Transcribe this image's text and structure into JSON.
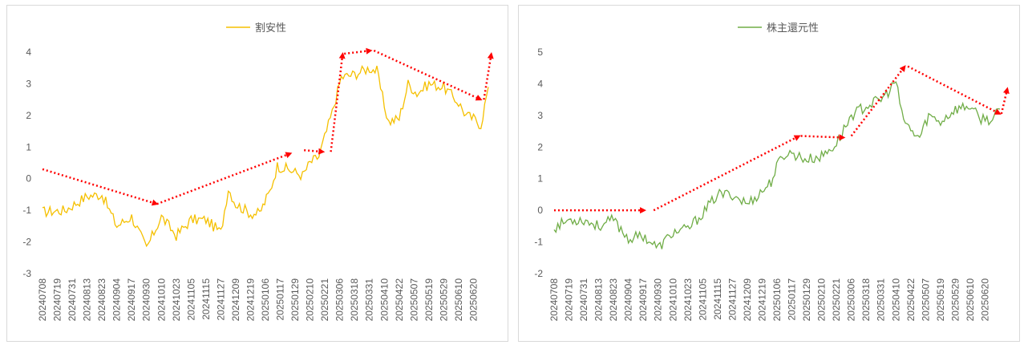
{
  "chart_data": [
    {
      "type": "line",
      "color": "#f5c000",
      "series": [
        {
          "name": "割安性"
        }
      ],
      "ylim": [
        -3,
        4
      ],
      "yticks": [
        -3,
        -2,
        -1,
        0,
        1,
        2,
        3,
        4
      ],
      "ytick_labels": [
        "-3",
        "-2",
        "-1",
        "0",
        "1",
        "2",
        "3",
        "4"
      ],
      "xtick_labels": [
        "20240708",
        "20240719",
        "20240731",
        "20240813",
        "20240823",
        "20240904",
        "20240917",
        "20240930",
        "20241010",
        "20241023",
        "20241105",
        "20241115",
        "20241127",
        "20241209",
        "20241219",
        "20250106",
        "20250117",
        "20250129",
        "20250210",
        "20250221",
        "20250306",
        "20250318",
        "20250331",
        "20250410",
        "20250422",
        "20250507",
        "20250519",
        "20250529",
        "20250610",
        "20250620"
      ],
      "keypoints": [
        [
          0,
          -1.05
        ],
        [
          1.5,
          -1.0
        ],
        [
          3,
          -0.55
        ],
        [
          4,
          -0.5
        ],
        [
          5,
          -1.5
        ],
        [
          6,
          -1.2
        ],
        [
          7,
          -2.2
        ],
        [
          7.5,
          -1.7
        ],
        [
          8,
          -1.2
        ],
        [
          9,
          -1.8
        ],
        [
          10,
          -1.3
        ],
        [
          11,
          -1.3
        ],
        [
          12,
          -1.7
        ],
        [
          12.5,
          -0.3
        ],
        [
          13,
          -0.8
        ],
        [
          14,
          -1.1
        ],
        [
          14.6,
          -1.1
        ],
        [
          15.3,
          -0.4
        ],
        [
          15.8,
          0.4
        ],
        [
          16.5,
          0.3
        ],
        [
          17.5,
          0.1
        ],
        [
          18,
          0.5
        ],
        [
          18.6,
          0.7
        ],
        [
          19.5,
          2.1
        ],
        [
          20.1,
          3.2
        ],
        [
          21,
          3.3
        ],
        [
          22,
          3.5
        ],
        [
          22.5,
          3.4
        ],
        [
          23,
          2.3
        ],
        [
          23.3,
          1.8
        ],
        [
          24,
          1.9
        ],
        [
          24.6,
          3.0
        ],
        [
          25.2,
          2.7
        ],
        [
          26,
          3.0
        ],
        [
          27,
          2.9
        ],
        [
          28,
          2.4
        ],
        [
          28.5,
          2.0
        ],
        [
          29,
          1.9
        ],
        [
          29.5,
          1.7
        ],
        [
          30,
          2.9
        ]
      ],
      "trend_arrows": [
        [
          [
            0,
            0.3
          ],
          [
            7.7,
            -0.8
          ]
        ],
        [
          [
            7.7,
            -0.8
          ],
          [
            16.7,
            0.8
          ]
        ],
        [
          [
            17.6,
            0.9
          ],
          [
            18.9,
            0.85
          ]
        ],
        [
          [
            19.4,
            0.85
          ],
          [
            20.2,
            3.95
          ]
        ],
        [
          [
            20.3,
            3.95
          ],
          [
            22.1,
            4.05
          ]
        ],
        [
          [
            22.3,
            4.05
          ],
          [
            29.5,
            2.5
          ]
        ],
        [
          [
            29.7,
            2.5
          ],
          [
            30.2,
            3.95
          ]
        ]
      ]
    },
    {
      "type": "line",
      "color": "#70ad47",
      "series": [
        {
          "name": "株主還元性"
        }
      ],
      "ylim": [
        -2,
        5
      ],
      "yticks": [
        -2,
        -1,
        0,
        1,
        2,
        3,
        4,
        5
      ],
      "ytick_labels": [
        "-2",
        "-1",
        "0",
        "1",
        "2",
        "3",
        "4",
        "5"
      ],
      "xtick_labels": [
        "20240708",
        "20240719",
        "20240731",
        "20240813",
        "20240823",
        "20240904",
        "20240917",
        "20240930",
        "20241010",
        "20241023",
        "20241105",
        "20241115",
        "20241127",
        "20241209",
        "20241219",
        "20250106",
        "20250117",
        "20250129",
        "20250210",
        "20250221",
        "20250306",
        "20250318",
        "20250331",
        "20250410",
        "20250422",
        "20250507",
        "20250519",
        "20250529",
        "20250610",
        "20250620"
      ],
      "keypoints": [
        [
          0,
          -0.55
        ],
        [
          1,
          -0.3
        ],
        [
          2,
          -0.3
        ],
        [
          3,
          -0.5
        ],
        [
          4,
          -0.3
        ],
        [
          5,
          -0.9
        ],
        [
          6,
          -0.8
        ],
        [
          7,
          -1.2
        ],
        [
          8,
          -0.7
        ],
        [
          9,
          -0.6
        ],
        [
          10,
          -0.1
        ],
        [
          10.5,
          0.2
        ],
        [
          11,
          0.5
        ],
        [
          12,
          0.5
        ],
        [
          13,
          0.2
        ],
        [
          14,
          0.6
        ],
        [
          14.6,
          0.9
        ],
        [
          15.1,
          1.5
        ],
        [
          15.6,
          1.8
        ],
        [
          16,
          1.8
        ],
        [
          17,
          1.6
        ],
        [
          18,
          1.7
        ],
        [
          19,
          2.1
        ],
        [
          20,
          3.0
        ],
        [
          21,
          3.3
        ],
        [
          22,
          3.5
        ],
        [
          22.6,
          3.8
        ],
        [
          23,
          4.1
        ],
        [
          23.4,
          3.0
        ],
        [
          24,
          2.5
        ],
        [
          24.6,
          2.3
        ],
        [
          25.2,
          3.0
        ],
        [
          26,
          2.8
        ],
        [
          27,
          3.2
        ],
        [
          28,
          3.3
        ],
        [
          28.6,
          2.9
        ],
        [
          29,
          2.9
        ],
        [
          29.5,
          2.85
        ],
        [
          30,
          3.2
        ]
      ],
      "trend_arrows": [
        [
          [
            0,
            0.0
          ],
          [
            6.1,
            0.0
          ]
        ],
        [
          [
            6.7,
            0.0
          ],
          [
            16.5,
            2.35
          ]
        ],
        [
          [
            16.6,
            2.35
          ],
          [
            19.5,
            2.3
          ]
        ],
        [
          [
            20,
            2.35
          ],
          [
            23.6,
            4.55
          ]
        ],
        [
          [
            23.8,
            4.55
          ],
          [
            30,
            3.05
          ]
        ],
        [
          [
            30.1,
            3.05
          ],
          [
            30.5,
            3.85
          ]
        ]
      ]
    }
  ]
}
